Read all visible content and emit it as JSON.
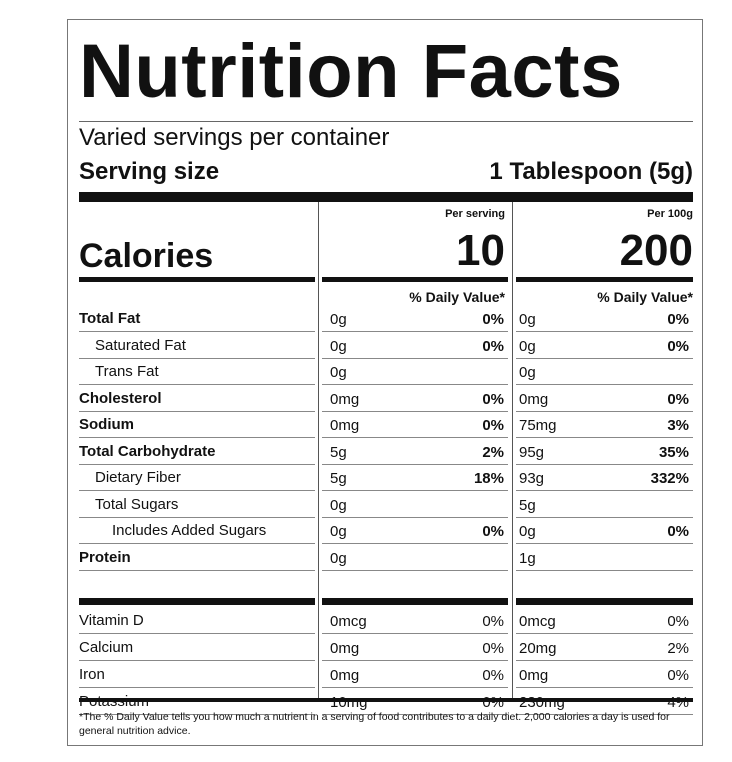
{
  "label": {
    "title": "Nutrition Facts",
    "servings_per_container": "Varied servings per container",
    "serving_size_label": "Serving size",
    "serving_size_value": "1 Tablespoon (5g)",
    "calories_label": "Calories",
    "columns": [
      {
        "header": "Per serving",
        "calories": "10",
        "dv_header": "% Daily Value*"
      },
      {
        "header": "Per 100g",
        "calories": "200",
        "dv_header": "% Daily Value*"
      }
    ],
    "nutrients": [
      {
        "name": "Total Fat",
        "style": "bold",
        "indent": 0,
        "c1_amount": "0g",
        "c1_dv": "0%",
        "c2_amount": "0g",
        "c2_dv": "0%"
      },
      {
        "name": "Saturated Fat",
        "style": "normal",
        "indent": 1,
        "c1_amount": "0g",
        "c1_dv": "0%",
        "c2_amount": "0g",
        "c2_dv": "0%"
      },
      {
        "name": "Trans Fat",
        "style": "normal",
        "indent": 1,
        "c1_amount": "0g",
        "c1_dv": "",
        "c2_amount": "0g",
        "c2_dv": ""
      },
      {
        "name": "Cholesterol",
        "style": "bold",
        "indent": 0,
        "c1_amount": "0mg",
        "c1_dv": "0%",
        "c2_amount": "0mg",
        "c2_dv": "0%"
      },
      {
        "name": "Sodium",
        "style": "bold",
        "indent": 0,
        "c1_amount": "0mg",
        "c1_dv": "0%",
        "c2_amount": "75mg",
        "c2_dv": "3%"
      },
      {
        "name": "Total Carbohydrate",
        "style": "bold",
        "indent": 0,
        "c1_amount": "5g",
        "c1_dv": "2%",
        "c2_amount": "95g",
        "c2_dv": "35%"
      },
      {
        "name": "Dietary Fiber",
        "style": "normal",
        "indent": 1,
        "c1_amount": "5g",
        "c1_dv": "18%",
        "c2_amount": "93g",
        "c2_dv": "332%"
      },
      {
        "name": "Total Sugars",
        "style": "normal",
        "indent": 1,
        "c1_amount": "0g",
        "c1_dv": "",
        "c2_amount": "5g",
        "c2_dv": ""
      },
      {
        "name": "Includes Added Sugars",
        "style": "normal",
        "indent": 2,
        "c1_amount": "0g",
        "c1_dv": "0%",
        "c2_amount": "0g",
        "c2_dv": "0%"
      },
      {
        "name": "Protein",
        "style": "bold",
        "indent": 0,
        "c1_amount": "0g",
        "c1_dv": "",
        "c2_amount": "1g",
        "c2_dv": ""
      }
    ],
    "vitamins": [
      {
        "name": "Vitamin D",
        "c1_amount": "0mcg",
        "c1_dv": "0%",
        "c2_amount": "0mcg",
        "c2_dv": "0%"
      },
      {
        "name": "Calcium",
        "c1_amount": "0mg",
        "c1_dv": "0%",
        "c2_amount": "20mg",
        "c2_dv": "2%"
      },
      {
        "name": "Iron",
        "c1_amount": "0mg",
        "c1_dv": "0%",
        "c2_amount": "0mg",
        "c2_dv": "0%"
      },
      {
        "name": "Potassium",
        "c1_amount": "10mg",
        "c1_dv": "0%",
        "c2_amount": "230mg",
        "c2_dv": "4%"
      }
    ],
    "footnote": "*The % Daily Value tells you how much a nutrient in a serving of food contributes to a daily diet. 2,000 calories a day is used for general nutrition advice."
  }
}
